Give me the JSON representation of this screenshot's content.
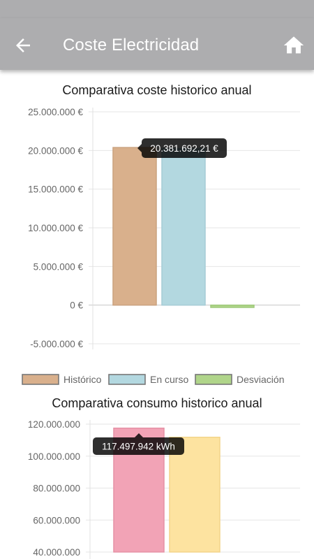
{
  "appbar": {
    "title": "Coste Electricidad",
    "back_icon": "arrow-left-icon",
    "home_icon": "home-icon",
    "background": "#adadaf"
  },
  "charts": [
    {
      "chart_data": {
        "type": "bar",
        "title": "Comparativa coste historico anual",
        "categories": [
          ""
        ],
        "series": [
          {
            "name": "Histórico",
            "values": [
              20381692.21
            ],
            "color": "#d9b08c",
            "border": "#caa27f"
          },
          {
            "name": "En curso",
            "values": [
              20250000
            ],
            "color": "#b3d8e0",
            "border": "#a5ccd6"
          },
          {
            "name": "Desviación",
            "values": [
              -300000
            ],
            "color": "#b0d58a",
            "border": "#9ec97a"
          }
        ],
        "y_ticks": [
          "25.000.000 €",
          "20.000.000 €",
          "15.000.000 €",
          "10.000.000 €",
          "5.000.000 €",
          "0 €",
          "-5.000.000 €"
        ],
        "ylim": [
          -5000000,
          25000000
        ],
        "grid": true,
        "legend": "bottom",
        "tooltip": "20.381.692,21 €"
      }
    },
    {
      "chart_data": {
        "type": "bar",
        "title": "Comparativa consumo historico anual",
        "categories": [
          ""
        ],
        "series": [
          {
            "values": [
              117497942
            ],
            "color": "#f2a3b6",
            "border": "#e591a5"
          },
          {
            "values": [
              111800000
            ],
            "color": "#fde3a0",
            "border": "#f3d48a"
          }
        ],
        "y_ticks": [
          "120.000.000",
          "100.000.000",
          "80.000.000",
          "60.000.000",
          "40.000.000"
        ],
        "ylim": [
          40000000,
          120000000
        ],
        "grid": true,
        "tooltip": "117.497.942 kWh"
      }
    }
  ]
}
